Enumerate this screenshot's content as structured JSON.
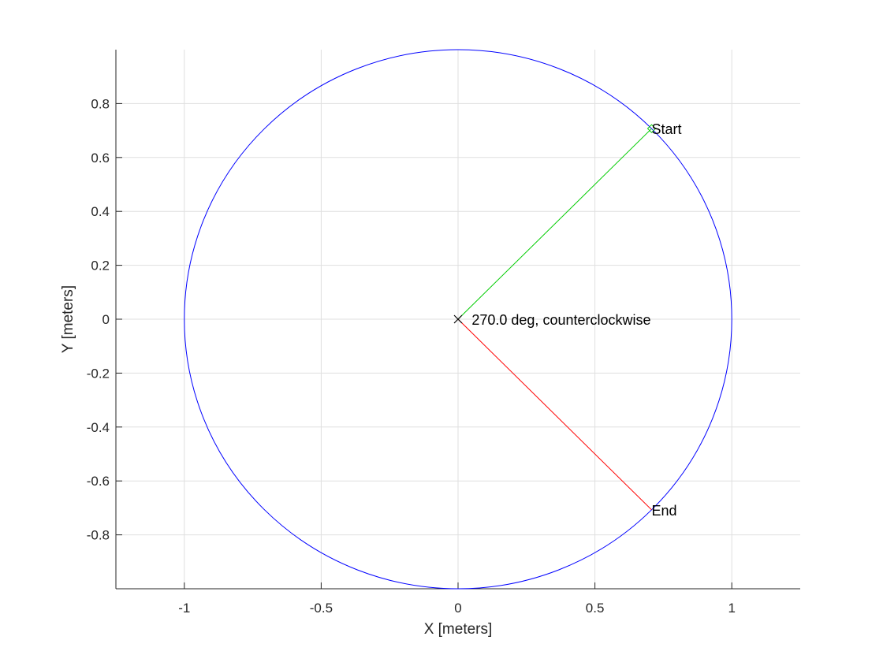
{
  "chart_data": {
    "type": "line",
    "title": "",
    "xlabel": "X [meters]",
    "ylabel": "Y [meters]",
    "xlim": [
      -1.25,
      1.25
    ],
    "ylim": [
      -1,
      1
    ],
    "grid": true,
    "xticks": [
      -1,
      -0.5,
      0,
      0.5,
      1
    ],
    "xtick_labels": [
      "-1",
      "-0.5",
      "0",
      "0.5",
      "1"
    ],
    "yticks": [
      -0.8,
      -0.6,
      -0.4,
      -0.2,
      0,
      0.2,
      0.4,
      0.6,
      0.8
    ],
    "ytick_labels": [
      "-0.8",
      "-0.6",
      "-0.4",
      "-0.2",
      "0",
      "0.2",
      "0.4",
      "0.6",
      "0.8"
    ],
    "circle": {
      "center": [
        0,
        0
      ],
      "radius": 1,
      "color": "#0000ff"
    },
    "start_line": {
      "x": [
        0,
        0.7071
      ],
      "y": [
        0,
        0.7071
      ],
      "color": "#00cc00"
    },
    "end_line": {
      "x": [
        0,
        0.7071
      ],
      "y": [
        0,
        -0.7071
      ],
      "color": "#ff0000"
    },
    "center_marker": {
      "x": 0,
      "y": 0,
      "shape": "x",
      "color": "#000000"
    },
    "start_marker": {
      "x": 0.7071,
      "y": 0.7071,
      "shape": "diamond",
      "color": "#00cc00"
    },
    "annotations": [
      {
        "name": "annotation-start",
        "text": "Start",
        "x": 0.7071,
        "y": 0.7071
      },
      {
        "name": "annotation-end",
        "text": "End",
        "x": 0.7071,
        "y": -0.7071
      },
      {
        "name": "annotation-sweep",
        "text": "270.0 deg, counterclockwise",
        "x": 0.05,
        "y": 0
      }
    ],
    "axis_color": "#262626",
    "grid_color": "#dfdfdf"
  }
}
